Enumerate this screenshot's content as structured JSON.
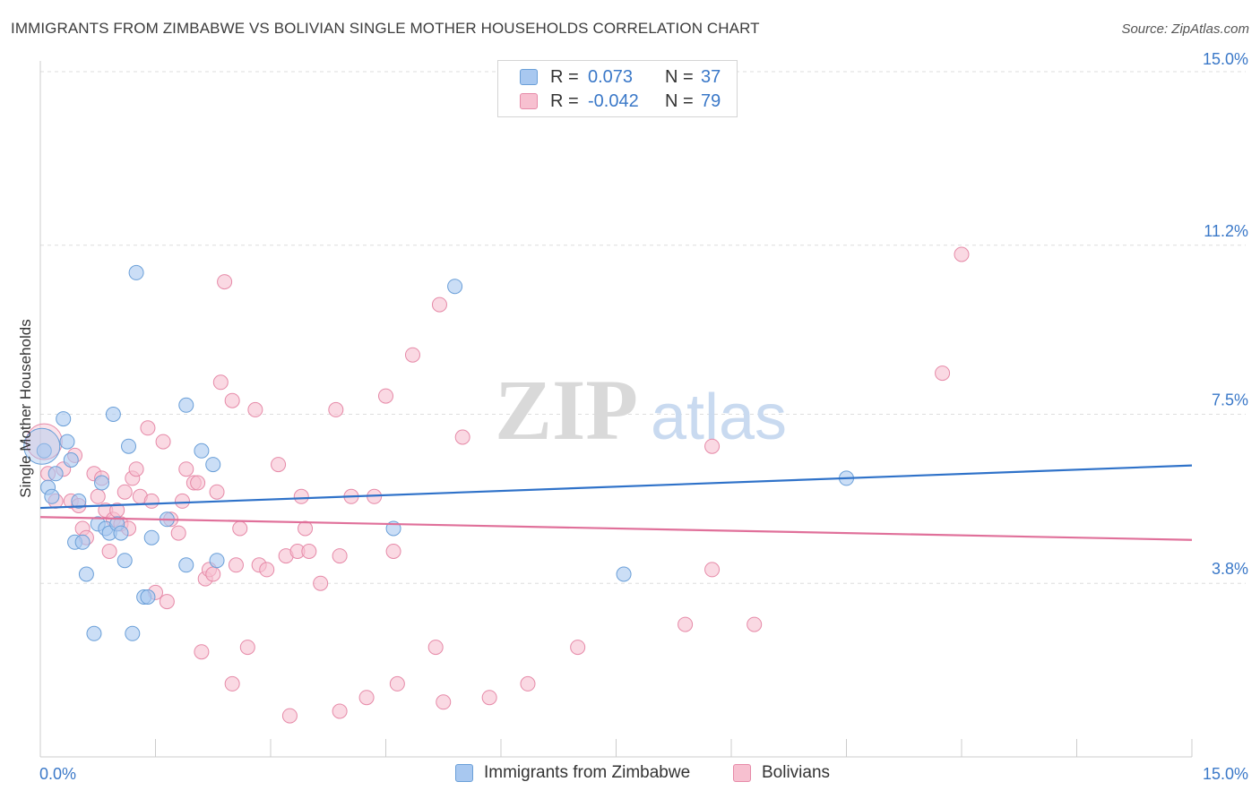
{
  "title": "IMMIGRANTS FROM ZIMBABWE VS BOLIVIAN SINGLE MOTHER HOUSEHOLDS CORRELATION CHART",
  "source": "Source: ZipAtlas.com",
  "watermark": {
    "zip": "ZIP",
    "atlas": "atlas"
  },
  "legend": {
    "rows": [
      {
        "r_label": "R =",
        "r_value": "0.073",
        "n_label": "N =",
        "n_value": "37",
        "color": "#a8c8f0",
        "border": "#6a9fd8"
      },
      {
        "r_label": "R =",
        "r_value": "-0.042",
        "n_label": "N =",
        "n_value": "79",
        "color": "#f7c0d0",
        "border": "#e68aa8"
      }
    ]
  },
  "bottom_legend": {
    "items": [
      {
        "label": "Immigrants from Zimbabwe",
        "color": "#a8c8f0",
        "border": "#6a9fd8"
      },
      {
        "label": "Bolivians",
        "color": "#f7c0d0",
        "border": "#e68aa8"
      }
    ]
  },
  "chart_data": {
    "type": "scatter",
    "title": "IMMIGRANTS FROM ZIMBABWE VS BOLIVIAN SINGLE MOTHER HOUSEHOLDS CORRELATION CHART",
    "xlabel": "",
    "ylabel": "Single Mother Households",
    "xlim": [
      0,
      15
    ],
    "ylim": [
      0,
      15
    ],
    "x_tick_labels": [
      "0.0%",
      "15.0%"
    ],
    "y_ticks": [
      3.8,
      7.5,
      11.2,
      15.0
    ],
    "y_tick_labels": [
      "3.8%",
      "7.5%",
      "11.2%",
      "15.0%"
    ],
    "grid": true,
    "legend_position": "top-center",
    "series": [
      {
        "name": "Immigrants from Zimbabwe",
        "color": "#6a9fd8",
        "fill": "#a8c8f0",
        "trend": {
          "x": [
            0.0,
            15.0
          ],
          "y": [
            5.45,
            6.38
          ]
        },
        "points": [
          [
            0.05,
            6.7
          ],
          [
            0.1,
            5.9
          ],
          [
            0.15,
            5.7
          ],
          [
            0.2,
            6.2
          ],
          [
            0.3,
            7.4
          ],
          [
            0.35,
            6.9
          ],
          [
            0.4,
            6.5
          ],
          [
            0.45,
            4.7
          ],
          [
            0.5,
            5.6
          ],
          [
            0.55,
            4.7
          ],
          [
            0.6,
            4.0
          ],
          [
            0.7,
            2.7
          ],
          [
            0.75,
            5.1
          ],
          [
            0.8,
            6.0
          ],
          [
            0.85,
            5.0
          ],
          [
            0.9,
            4.9
          ],
          [
            0.95,
            7.5
          ],
          [
            1.0,
            5.1
          ],
          [
            1.05,
            4.9
          ],
          [
            1.1,
            4.3
          ],
          [
            1.15,
            6.8
          ],
          [
            1.2,
            2.7
          ],
          [
            1.25,
            10.6
          ],
          [
            1.35,
            3.5
          ],
          [
            1.4,
            3.5
          ],
          [
            1.45,
            4.8
          ],
          [
            1.65,
            5.2
          ],
          [
            1.9,
            7.7
          ],
          [
            1.9,
            4.2
          ],
          [
            2.1,
            6.7
          ],
          [
            2.25,
            6.4
          ],
          [
            2.3,
            4.3
          ],
          [
            4.6,
            5.0
          ],
          [
            5.4,
            10.3
          ],
          [
            7.6,
            4.0
          ],
          [
            10.5,
            6.1
          ],
          [
            0.02,
            6.8
          ]
        ]
      },
      {
        "name": "Bolivians",
        "color": "#e68aa8",
        "fill": "#f7c0d0",
        "trend": {
          "x": [
            0.0,
            15.0
          ],
          "y": [
            5.25,
            4.75
          ]
        },
        "points": [
          [
            0.05,
            6.9
          ],
          [
            0.1,
            6.2
          ],
          [
            0.2,
            5.6
          ],
          [
            0.3,
            6.3
          ],
          [
            0.4,
            5.6
          ],
          [
            0.45,
            6.6
          ],
          [
            0.5,
            5.5
          ],
          [
            0.55,
            5.0
          ],
          [
            0.6,
            4.8
          ],
          [
            0.7,
            6.2
          ],
          [
            0.75,
            5.7
          ],
          [
            0.8,
            6.1
          ],
          [
            0.85,
            5.4
          ],
          [
            0.9,
            4.5
          ],
          [
            0.95,
            5.2
          ],
          [
            1.0,
            5.4
          ],
          [
            1.05,
            5.1
          ],
          [
            1.1,
            5.8
          ],
          [
            1.15,
            5.0
          ],
          [
            1.2,
            6.1
          ],
          [
            1.25,
            6.3
          ],
          [
            1.3,
            5.7
          ],
          [
            1.4,
            7.2
          ],
          [
            1.45,
            5.6
          ],
          [
            1.5,
            3.6
          ],
          [
            1.6,
            6.9
          ],
          [
            1.65,
            3.4
          ],
          [
            1.7,
            5.2
          ],
          [
            1.8,
            4.9
          ],
          [
            1.85,
            5.6
          ],
          [
            1.9,
            6.3
          ],
          [
            2.0,
            6.0
          ],
          [
            2.05,
            6.0
          ],
          [
            2.1,
            2.3
          ],
          [
            2.15,
            3.9
          ],
          [
            2.2,
            4.1
          ],
          [
            2.25,
            4.0
          ],
          [
            2.3,
            5.8
          ],
          [
            2.35,
            8.2
          ],
          [
            2.4,
            10.4
          ],
          [
            2.5,
            7.8
          ],
          [
            2.5,
            1.6
          ],
          [
            2.55,
            4.2
          ],
          [
            2.6,
            5.0
          ],
          [
            2.7,
            2.4
          ],
          [
            2.8,
            7.6
          ],
          [
            2.85,
            4.2
          ],
          [
            2.95,
            4.1
          ],
          [
            3.1,
            6.4
          ],
          [
            3.2,
            4.4
          ],
          [
            3.25,
            0.9
          ],
          [
            3.35,
            4.5
          ],
          [
            3.4,
            5.7
          ],
          [
            3.45,
            5.0
          ],
          [
            3.5,
            4.5
          ],
          [
            3.65,
            3.8
          ],
          [
            3.85,
            7.6
          ],
          [
            3.9,
            1.0
          ],
          [
            3.9,
            4.4
          ],
          [
            4.05,
            5.7
          ],
          [
            4.25,
            1.3
          ],
          [
            4.35,
            5.7
          ],
          [
            4.5,
            7.9
          ],
          [
            4.6,
            4.5
          ],
          [
            4.65,
            1.6
          ],
          [
            4.85,
            8.8
          ],
          [
            5.15,
            2.4
          ],
          [
            5.2,
            9.9
          ],
          [
            5.25,
            1.2
          ],
          [
            5.5,
            7.0
          ],
          [
            5.85,
            1.3
          ],
          [
            6.35,
            1.6
          ],
          [
            7.0,
            2.4
          ],
          [
            8.4,
            2.9
          ],
          [
            8.75,
            6.8
          ],
          [
            8.75,
            4.1
          ],
          [
            9.3,
            2.9
          ],
          [
            11.75,
            8.4
          ],
          [
            12.0,
            11.0
          ]
        ]
      }
    ]
  }
}
